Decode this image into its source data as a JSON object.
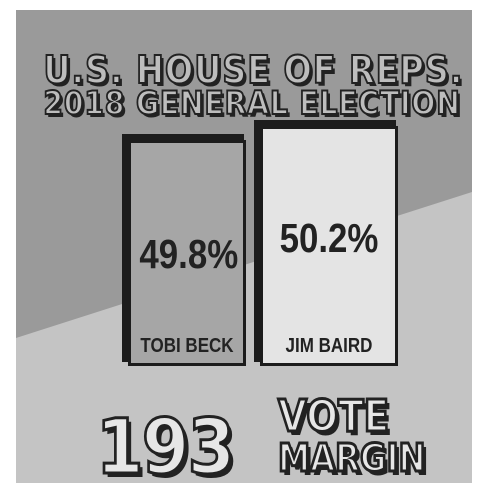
{
  "title": {
    "line1": "U.S. HOUSE OF REPS.",
    "line2": "2018 GENERAL ELECTION"
  },
  "candidates": [
    {
      "name": "TOBI BECK",
      "percent": "49.8%"
    },
    {
      "name": "JIM BAIRD",
      "percent": "50.2%"
    }
  ],
  "margin": {
    "number": "193",
    "word1": "VOTE",
    "word2": "MARGIN"
  },
  "colors": {
    "dark_gray": "#9a9a9a",
    "light_gray": "#c4c4c4",
    "bar_left": "#a6a6a6",
    "bar_right": "#e4e4e4",
    "ink": "#222222"
  }
}
